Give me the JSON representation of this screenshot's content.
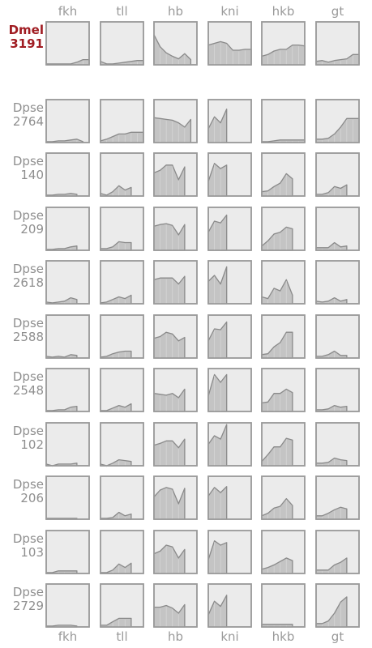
{
  "chart_data": {
    "type": "area",
    "genes": [
      "fkh",
      "tll",
      "hb",
      "kni",
      "hkb",
      "gt"
    ],
    "ylim": [
      0,
      1
    ],
    "x": [
      1,
      2,
      3,
      4,
      5,
      6,
      7,
      8
    ],
    "rows": [
      {
        "label_line1": "Dmel",
        "label_line2": "3191",
        "reference": true,
        "values": [
          [
            0.02,
            0.02,
            0.02,
            0.02,
            0.02,
            0.06,
            0.12,
            0.12
          ],
          [
            0.08,
            0.02,
            0.02,
            0.04,
            0.06,
            0.08,
            0.1,
            0.1
          ],
          [
            0.7,
            0.42,
            0.28,
            0.2,
            0.14,
            0.26,
            0.12,
            null
          ],
          [
            0.46,
            0.5,
            0.54,
            0.5,
            0.34,
            0.34,
            0.36,
            0.36
          ],
          [
            0.2,
            0.24,
            0.32,
            0.36,
            0.36,
            0.46,
            0.46,
            0.44
          ],
          [
            0.08,
            0.1,
            0.06,
            0.1,
            0.12,
            0.14,
            0.24,
            0.24
          ]
        ]
      },
      {
        "label_line1": "Dpse",
        "label_line2": "2764",
        "reference": false,
        "values": [
          [
            0.02,
            0.02,
            0.04,
            0.04,
            0.06,
            0.08,
            0.02,
            null
          ],
          [
            0.04,
            0.08,
            0.14,
            0.2,
            0.2,
            0.24,
            0.24,
            0.24
          ],
          [
            0.58,
            0.56,
            0.54,
            0.52,
            0.46,
            0.36,
            0.54,
            null
          ],
          [
            0.32,
            0.6,
            0.46,
            0.78,
            null,
            null,
            null,
            null
          ],
          [
            0.02,
            0.02,
            0.04,
            0.06,
            0.06,
            0.06,
            0.06,
            0.06
          ],
          [
            0.08,
            0.08,
            0.1,
            0.2,
            0.36,
            0.56,
            0.56,
            0.56
          ]
        ]
      },
      {
        "label_line1": "Dpse",
        "label_line2": "140",
        "reference": false,
        "values": [
          [
            0.02,
            0.02,
            0.04,
            0.04,
            0.06,
            0.04,
            null,
            null
          ],
          [
            0.06,
            0.02,
            0.1,
            0.24,
            0.14,
            0.2,
            null,
            null
          ],
          [
            0.54,
            0.6,
            0.72,
            0.72,
            0.38,
            0.68,
            null,
            null
          ],
          [
            0.34,
            0.76,
            0.64,
            0.72,
            null,
            null,
            null,
            null
          ],
          [
            0.1,
            0.12,
            0.22,
            0.3,
            0.52,
            0.4,
            null,
            null
          ],
          [
            0.04,
            0.04,
            0.08,
            0.22,
            0.18,
            0.26,
            null,
            null
          ]
        ]
      },
      {
        "label_line1": "Dpse",
        "label_line2": "209",
        "reference": false,
        "values": [
          [
            0.02,
            0.02,
            0.04,
            0.04,
            0.08,
            0.1,
            null,
            null
          ],
          [
            0.04,
            0.04,
            0.08,
            0.2,
            0.18,
            0.18,
            null,
            null
          ],
          [
            0.56,
            0.6,
            0.62,
            0.58,
            0.36,
            0.6,
            null,
            null
          ],
          [
            0.42,
            0.68,
            0.64,
            0.82,
            null,
            null,
            null,
            null
          ],
          [
            0.1,
            0.22,
            0.38,
            0.42,
            0.54,
            0.5,
            null,
            null
          ],
          [
            0.06,
            0.06,
            0.06,
            0.18,
            0.08,
            0.1,
            null,
            null
          ]
        ]
      },
      {
        "label_line1": "Dpse",
        "label_line2": "2618",
        "reference": false,
        "values": [
          [
            0.04,
            0.02,
            0.04,
            0.06,
            0.14,
            0.1,
            null,
            null
          ],
          [
            0.02,
            0.04,
            0.1,
            0.16,
            0.12,
            0.2,
            null,
            null
          ],
          [
            0.56,
            0.6,
            0.6,
            0.6,
            0.46,
            0.64,
            null,
            null
          ],
          [
            0.52,
            0.66,
            0.46,
            0.86,
            null,
            null,
            null,
            null
          ],
          [
            0.16,
            0.12,
            0.36,
            0.3,
            0.56,
            0.2,
            null,
            null
          ],
          [
            0.06,
            0.04,
            0.06,
            0.14,
            0.06,
            0.1,
            null,
            null
          ]
        ]
      },
      {
        "label_line1": "Dpse",
        "label_line2": "2588",
        "reference": false,
        "values": [
          [
            0.04,
            0.02,
            0.04,
            0.02,
            0.08,
            0.06,
            null,
            null
          ],
          [
            0.02,
            0.04,
            0.1,
            0.14,
            0.16,
            0.16,
            null,
            null
          ],
          [
            0.46,
            0.5,
            0.6,
            0.56,
            0.4,
            0.48,
            null,
            null
          ],
          [
            0.4,
            0.68,
            0.66,
            0.84,
            null,
            null,
            null,
            null
          ],
          [
            0.08,
            0.1,
            0.26,
            0.36,
            0.6,
            0.6,
            null,
            null
          ],
          [
            0.04,
            0.04,
            0.08,
            0.16,
            0.06,
            0.06,
            null,
            null
          ]
        ]
      },
      {
        "label_line1": "Dpse",
        "label_line2": "2548",
        "reference": false,
        "values": [
          [
            0.02,
            0.02,
            0.04,
            0.04,
            0.1,
            0.12,
            null,
            null
          ],
          [
            0.02,
            0.02,
            0.08,
            0.14,
            0.1,
            0.18,
            null,
            null
          ],
          [
            0.42,
            0.4,
            0.38,
            0.42,
            0.32,
            0.52,
            null,
            null
          ],
          [
            0.36,
            0.86,
            0.68,
            0.86,
            null,
            null,
            null,
            null
          ],
          [
            0.2,
            0.22,
            0.42,
            0.42,
            0.52,
            0.44,
            null,
            null
          ],
          [
            0.04,
            0.04,
            0.06,
            0.14,
            0.1,
            0.12,
            null,
            null
          ]
        ]
      },
      {
        "label_line1": "Dpse",
        "label_line2": "102",
        "reference": false,
        "values": [
          [
            0.04,
            0.0,
            0.04,
            0.04,
            0.04,
            0.06,
            null,
            null
          ],
          [
            0.04,
            0.0,
            0.06,
            0.14,
            0.12,
            0.1,
            null,
            null
          ],
          [
            0.48,
            0.52,
            0.58,
            0.58,
            0.42,
            0.62,
            null,
            null
          ],
          [
            0.5,
            0.7,
            0.62,
            0.96,
            null,
            null,
            null,
            null
          ],
          [
            0.1,
            0.26,
            0.44,
            0.44,
            0.64,
            0.6,
            null,
            null
          ],
          [
            0.06,
            0.06,
            0.08,
            0.18,
            0.14,
            0.12,
            null,
            null
          ]
        ]
      },
      {
        "label_line1": "Dpse",
        "label_line2": "206",
        "reference": false,
        "values": [
          [
            0.02,
            0.02,
            0.02,
            0.02,
            0.02,
            0.02,
            null,
            null
          ],
          [
            0.02,
            0.02,
            0.04,
            0.16,
            0.08,
            0.12,
            null,
            null
          ],
          [
            0.52,
            0.68,
            0.74,
            0.7,
            0.36,
            0.72,
            null,
            null
          ],
          [
            0.54,
            0.74,
            0.62,
            0.76,
            null,
            null,
            null,
            null
          ],
          [
            0.08,
            0.14,
            0.26,
            0.3,
            0.48,
            0.32,
            null,
            null
          ],
          [
            0.08,
            0.08,
            0.14,
            0.22,
            0.28,
            0.24,
            null,
            null
          ]
        ]
      },
      {
        "label_line1": "Dpse",
        "label_line2": "103",
        "reference": false,
        "values": [
          [
            0.02,
            0.02,
            0.06,
            0.06,
            0.06,
            0.06,
            null,
            null
          ],
          [
            0.02,
            0.02,
            0.08,
            0.22,
            0.14,
            0.24,
            null,
            null
          ],
          [
            0.46,
            0.52,
            0.66,
            0.62,
            0.36,
            0.56,
            null,
            null
          ],
          [
            0.32,
            0.76,
            0.66,
            0.72,
            null,
            null,
            null,
            null
          ],
          [
            0.1,
            0.14,
            0.2,
            0.28,
            0.36,
            0.3,
            null,
            null
          ],
          [
            0.08,
            0.08,
            0.08,
            0.2,
            0.26,
            0.36,
            null,
            null
          ]
        ]
      },
      {
        "label_line1": "Dpse",
        "label_line2": "2729",
        "reference": false,
        "values": [
          [
            0.02,
            0.02,
            0.04,
            0.04,
            0.04,
            0.02,
            null,
            null
          ],
          [
            0.04,
            0.04,
            0.12,
            0.2,
            0.2,
            0.2,
            null,
            null
          ],
          [
            0.46,
            0.46,
            0.5,
            0.44,
            0.32,
            0.52,
            null,
            null
          ],
          [
            0.28,
            0.6,
            0.48,
            0.74,
            null,
            null,
            null,
            null
          ],
          [
            0.06,
            0.06,
            0.06,
            0.06,
            0.06,
            0.06,
            null,
            null
          ],
          [
            0.08,
            0.08,
            0.14,
            0.32,
            0.58,
            0.7,
            null,
            null
          ]
        ]
      }
    ]
  }
}
